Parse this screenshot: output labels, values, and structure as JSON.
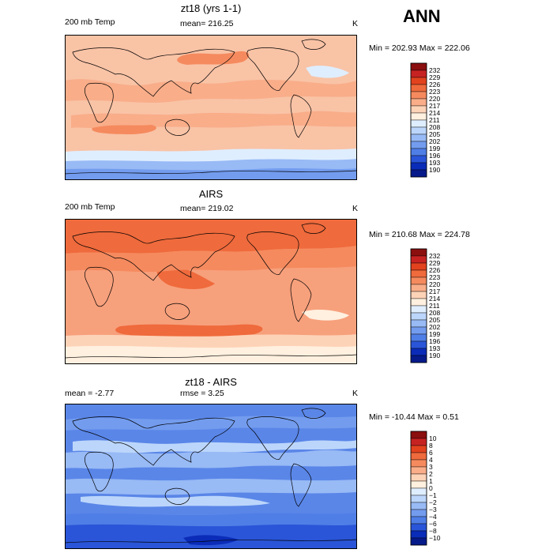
{
  "season": "ANN",
  "panels": [
    {
      "id": "model",
      "title": "zt18 (yrs 1-1)",
      "left_label": "200 mb Temp",
      "center_label": "mean= 216.25",
      "units": "K",
      "minmax": "Min = 202.93 Max = 222.06",
      "colorbar": {
        "labels": [
          "232",
          "229",
          "226",
          "223",
          "220",
          "217",
          "214",
          "211",
          "208",
          "205",
          "202",
          "199",
          "196",
          "193",
          "190"
        ],
        "colors": [
          "#8b0f0f",
          "#c72222",
          "#e2421e",
          "#ef6a3c",
          "#f58a5e",
          "#f9ad89",
          "#fdd3b8",
          "#fff0df",
          "#dfeeff",
          "#bcd6fb",
          "#98baf5",
          "#739cee",
          "#4f7ee6",
          "#2a55d8",
          "#0b2cb8",
          "#061a8a"
        ]
      },
      "field": {
        "background": "#f9c3a6",
        "bands": [
          {
            "level": "217",
            "color": "#f9ad89"
          },
          {
            "level": "220",
            "color": "#f58a5e"
          },
          {
            "level": "211",
            "color": "#dfeeff"
          },
          {
            "level": "205",
            "color": "#98baf5"
          },
          {
            "level": "202",
            "color": "#739cee"
          }
        ]
      }
    },
    {
      "id": "obs",
      "title": "AIRS",
      "left_label": "200 mb Temp",
      "center_label": "mean= 219.02",
      "units": "K",
      "minmax": "Min = 210.68 Max = 224.78",
      "colorbar": {
        "labels": [
          "232",
          "229",
          "226",
          "223",
          "220",
          "217",
          "214",
          "211",
          "208",
          "205",
          "202",
          "199",
          "196",
          "193",
          "190"
        ],
        "colors": [
          "#8b0f0f",
          "#c72222",
          "#e2421e",
          "#ef6a3c",
          "#f58a5e",
          "#f9ad89",
          "#fdd3b8",
          "#fff0df",
          "#dfeeff",
          "#bcd6fb",
          "#98baf5",
          "#739cee",
          "#4f7ee6",
          "#2a55d8",
          "#0b2cb8",
          "#061a8a"
        ]
      },
      "field": {
        "background": "#f7a07c",
        "bands": [
          {
            "level": "223",
            "color": "#ef6a3c"
          },
          {
            "level": "220",
            "color": "#f58a5e"
          },
          {
            "level": "214",
            "color": "#fdd3b8"
          },
          {
            "level": "211",
            "color": "#fff0df"
          }
        ]
      }
    },
    {
      "id": "diff",
      "title": "zt18 - AIRS",
      "left_label": "mean =   -2.77",
      "center_label": "rmse =    3.25",
      "units": "K",
      "minmax": "Min = -10.44 Max =   0.51",
      "colorbar": {
        "labels": [
          "10",
          "8",
          "6",
          "4",
          "3",
          "2",
          "1",
          "0",
          "−1",
          "−2",
          "−3",
          "−4",
          "−6",
          "−8",
          "−10"
        ],
        "colors": [
          "#8b0f0f",
          "#c72222",
          "#e2421e",
          "#ef6a3c",
          "#f58a5e",
          "#f9ad89",
          "#fdd3b8",
          "#fff0df",
          "#dfeeff",
          "#bcd6fb",
          "#98baf5",
          "#739cee",
          "#4f7ee6",
          "#2a55d8",
          "#0b2cb8",
          "#061a8a"
        ]
      },
      "field": {
        "background": "#5a86e8",
        "bands": [
          {
            "level": "−2",
            "color": "#bcd6fb"
          },
          {
            "level": "−3",
            "color": "#98baf5"
          },
          {
            "level": "−4",
            "color": "#739cee"
          },
          {
            "level": "−6",
            "color": "#4f7ee6"
          },
          {
            "level": "−8",
            "color": "#2a55d8"
          },
          {
            "level": "−10",
            "color": "#0b2cb8"
          }
        ]
      }
    }
  ]
}
